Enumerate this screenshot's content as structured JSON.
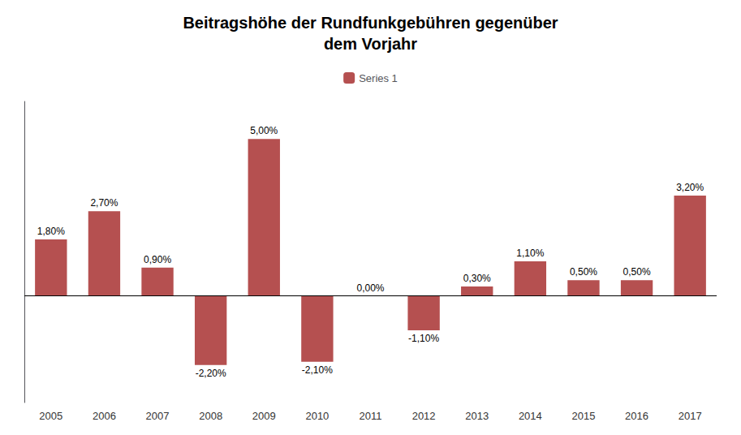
{
  "chart_data": {
    "type": "bar",
    "title": "Beitragshöhe der Rundfunkgebühren gegenüber\ndem Vorjahr",
    "categories": [
      "2005",
      "2006",
      "2007",
      "2008",
      "2009",
      "2010",
      "2011",
      "2012",
      "2013",
      "2014",
      "2015",
      "2016",
      "2017"
    ],
    "series": [
      {
        "name": "Series 1",
        "color": "#B55050",
        "values": [
          1.8,
          2.7,
          0.9,
          -2.2,
          5.0,
          -2.1,
          0.0,
          -1.1,
          0.3,
          1.1,
          0.5,
          0.5,
          3.2
        ],
        "value_labels": [
          "1,80%",
          "2,70%",
          "0,90%",
          "-2,20%",
          "5,00%",
          "-2,10%",
          "0,00%",
          "-1,10%",
          "0,30%",
          "1,10%",
          "0,50%",
          "0,50%",
          "3,20%"
        ]
      }
    ],
    "ylim": [
      -3.4,
      6.2
    ],
    "yticks": [],
    "tick_labels": "x",
    "grid": false,
    "legend": "top",
    "data_labels": true
  }
}
